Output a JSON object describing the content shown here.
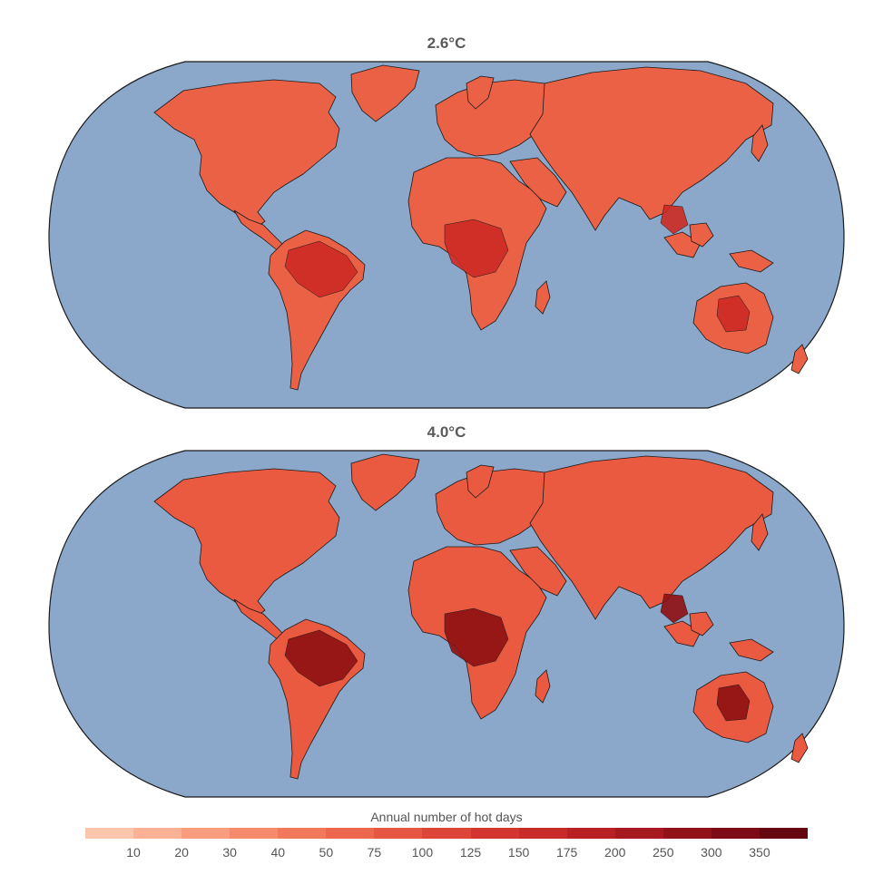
{
  "maps": [
    {
      "title": "2.6°C",
      "base_color": "#ea6145",
      "hot_color": "#cc2a22",
      "hottest_color": "#b81d1c"
    },
    {
      "title": "4.0°C",
      "base_color": "#ea5a40",
      "hot_color": "#c0201e",
      "hottest_color": "#8e0f12"
    }
  ],
  "ocean_color": "#8ba7c9",
  "legend": {
    "title": "Annual number of  hot days",
    "colors": [
      "#fcc6ad",
      "#fbb195",
      "#f99d7f",
      "#f68a6c",
      "#f2785c",
      "#ec674e",
      "#e55643",
      "#dd4539",
      "#d33530",
      "#c62a29",
      "#b72124",
      "#a61a1f",
      "#92121a",
      "#7c0b15",
      "#650610"
    ],
    "ticks": [
      "10",
      "20",
      "30",
      "40",
      "50",
      "75",
      "100",
      "125",
      "150",
      "175",
      "200",
      "250",
      "300",
      "350"
    ]
  }
}
